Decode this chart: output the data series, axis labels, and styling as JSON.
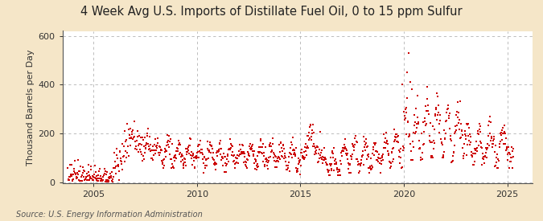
{
  "title": "4 Week Avg U.S. Imports of Distillate Fuel Oil, 0 to 15 ppm Sulfur",
  "ylabel": "Thousand Barrels per Day",
  "source_text": "Source: U.S. Energy Information Administration",
  "background_color": "#f5e6c8",
  "plot_background_color": "#ffffff",
  "dot_color": "#cc0000",
  "dot_size": 2.5,
  "xlim": [
    2003.5,
    2026.2
  ],
  "ylim": [
    -5,
    620
  ],
  "yticks": [
    0,
    200,
    400,
    600
  ],
  "xticks": [
    2005,
    2010,
    2015,
    2020,
    2025
  ],
  "title_fontsize": 10.5,
  "ylabel_fontsize": 8,
  "tick_fontsize": 8,
  "source_fontsize": 7
}
